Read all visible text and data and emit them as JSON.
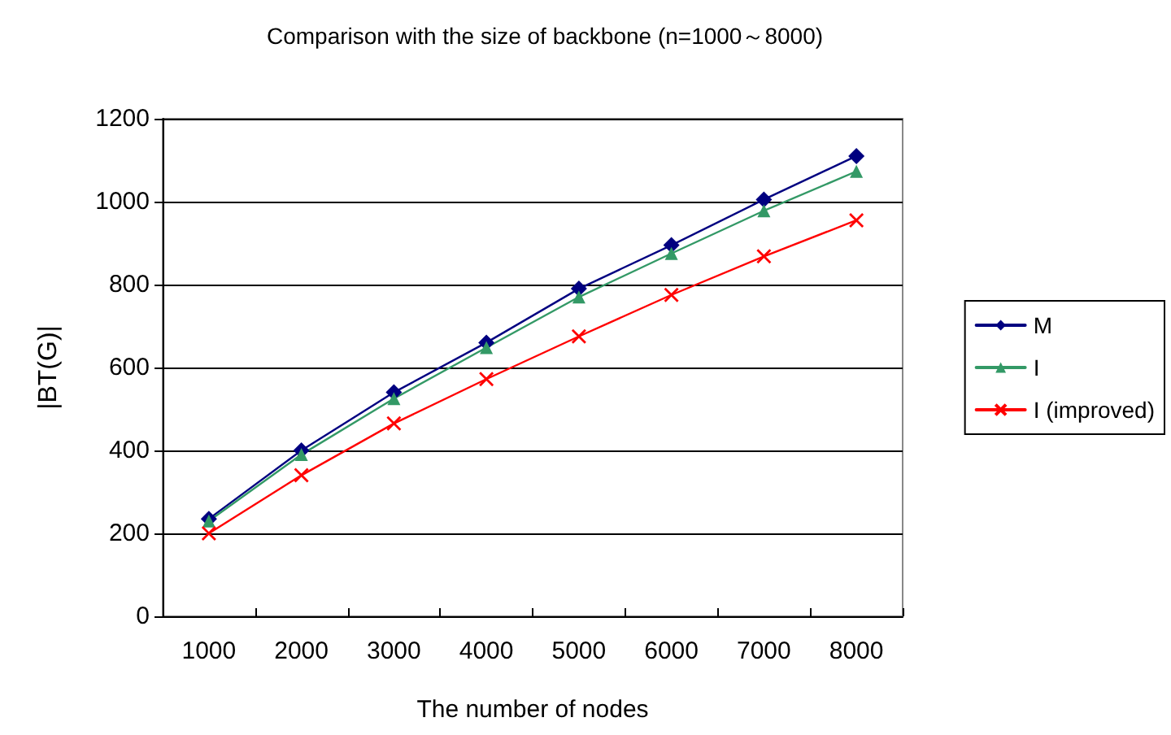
{
  "chart_data": {
    "type": "line",
    "title": "Comparison with the size of backbone (n=1000～8000)",
    "xlabel": "The number of nodes",
    "ylabel": "|BT(G)|",
    "categories": [
      "1000",
      "2000",
      "3000",
      "4000",
      "5000",
      "6000",
      "7000",
      "8000"
    ],
    "series": [
      {
        "name": "M",
        "color": "#000080",
        "marker": "diamond",
        "values": [
          235,
          400,
          540,
          660,
          790,
          895,
          1005,
          1110
        ]
      },
      {
        "name": "I",
        "color": "#339966",
        "marker": "triangle",
        "values": [
          230,
          390,
          525,
          648,
          770,
          875,
          978,
          1073
        ]
      },
      {
        "name": "I (improved)",
        "color": "#ff0000",
        "marker": "cross",
        "values": [
          200,
          340,
          465,
          572,
          675,
          775,
          868,
          955
        ]
      }
    ],
    "ylim": [
      0,
      1200
    ],
    "yticks": [
      0,
      200,
      400,
      600,
      800,
      1000,
      1200
    ],
    "grid": "y",
    "legend": "right",
    "line_style": "solid"
  }
}
